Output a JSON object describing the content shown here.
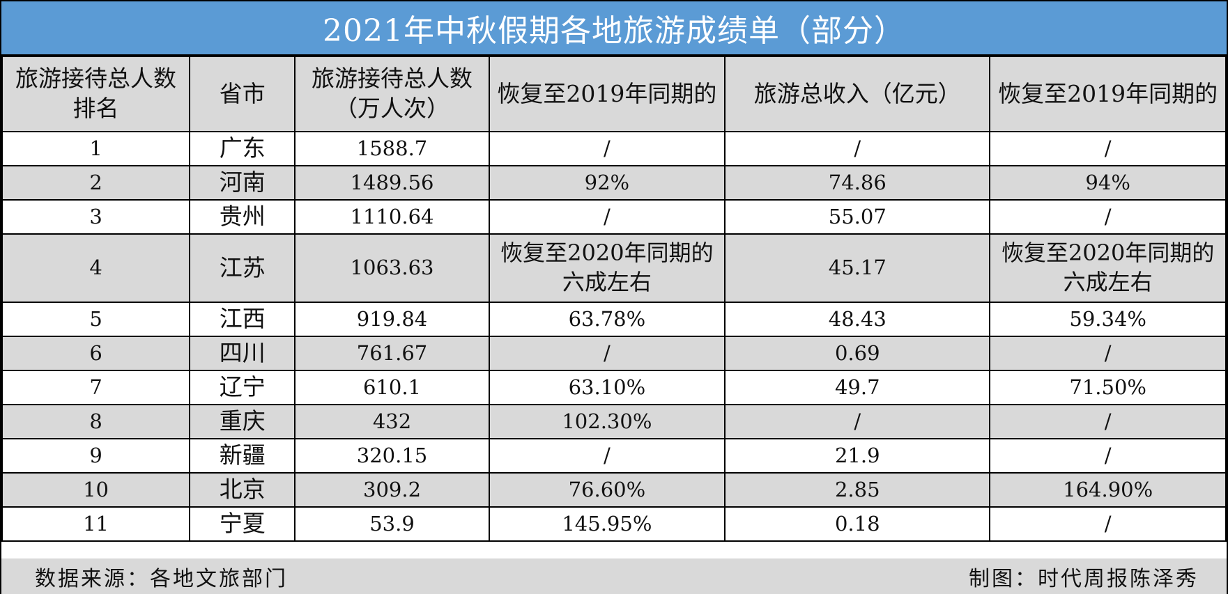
{
  "chart_data": {
    "type": "table",
    "title": "2021年中秋假期各地旅游成绩单（部分）",
    "columns": [
      "旅游接待总人数排名",
      "省市",
      "旅游接待总人数（万人次）",
      "恢复至2019年同期的",
      "旅游总收入（亿元）",
      "恢复至2019年同期的"
    ],
    "rows": [
      [
        "1",
        "广东",
        "1588.7",
        "/",
        "/",
        "/"
      ],
      [
        "2",
        "河南",
        "1489.56",
        "92%",
        "74.86",
        "94%"
      ],
      [
        "3",
        "贵州",
        "1110.64",
        "/",
        "55.07",
        "/"
      ],
      [
        "4",
        "江苏",
        "1063.63",
        "恢复至2020年同期的六成左右",
        "45.17",
        "恢复至2020年同期的六成左右"
      ],
      [
        "5",
        "江西",
        "919.84",
        "63.78%",
        "48.43",
        "59.34%"
      ],
      [
        "6",
        "四川",
        "761.67",
        "/",
        "0.69",
        "/"
      ],
      [
        "7",
        "辽宁",
        "610.1",
        "63.10%",
        "49.7",
        "71.50%"
      ],
      [
        "8",
        "重庆",
        "432",
        "102.30%",
        "/",
        "/"
      ],
      [
        "9",
        "新疆",
        "320.15",
        "/",
        "21.9",
        "/"
      ],
      [
        "10",
        "北京",
        "309.2",
        "76.60%",
        "2.85",
        "164.90%"
      ],
      [
        "11",
        "宁夏",
        "53.9",
        "145.95%",
        "0.18",
        "/"
      ]
    ]
  },
  "footer": {
    "source": "数据来源：各地文旅部门",
    "credit": "制图：时代周报陈泽秀"
  },
  "colors": {
    "title_background": "#5b9bd5",
    "title_text": "#ffffff",
    "shaded_row": "#d9d9d9"
  }
}
